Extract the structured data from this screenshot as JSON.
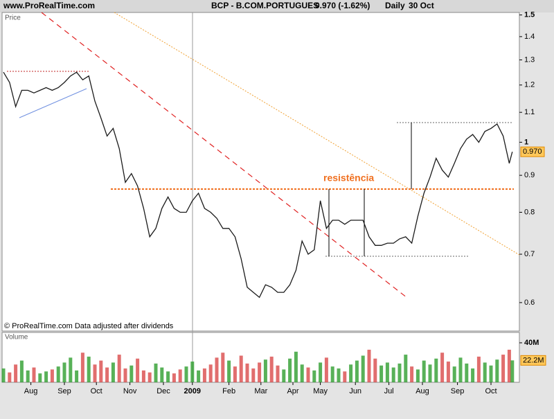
{
  "header_site": "www.ProRealTime.com",
  "chart_data": [
    {
      "type": "line",
      "title": "BCP - B.COM.PORTUGUES",
      "last_change": "0.970 (-1.62%)",
      "period": "Daily",
      "date": "30 Oct",
      "footer": "© ProRealTime.com  Data adjusted after dividends",
      "annotation": "resistência",
      "log_scale": true,
      "x": [
        0,
        4,
        8,
        12,
        16,
        20,
        24,
        28,
        32,
        36,
        40,
        44,
        48,
        52,
        56,
        60,
        64,
        68,
        72,
        76,
        80,
        84,
        88,
        92,
        96,
        100,
        104,
        108,
        112,
        116,
        120,
        124,
        128,
        132,
        136,
        140,
        144,
        148,
        152,
        156,
        160,
        164,
        168,
        172,
        176,
        180,
        184,
        188,
        192,
        196,
        200,
        204,
        208,
        212,
        216,
        220,
        224,
        228,
        232,
        236,
        240,
        244,
        248,
        252,
        256,
        260,
        264,
        268,
        272,
        276,
        280,
        284,
        288,
        292,
        296,
        300,
        304,
        308,
        312,
        316,
        320,
        324,
        328,
        332,
        334
      ],
      "series": [
        {
          "name": "Price",
          "color": "#1a1a1a",
          "values": [
            1.25,
            1.21,
            1.12,
            1.18,
            1.18,
            1.17,
            1.18,
            1.19,
            1.18,
            1.19,
            1.21,
            1.235,
            1.25,
            1.22,
            1.235,
            1.14,
            1.08,
            1.02,
            1.045,
            0.98,
            0.88,
            0.905,
            0.87,
            0.81,
            0.74,
            0.76,
            0.81,
            0.84,
            0.81,
            0.8,
            0.8,
            0.83,
            0.85,
            0.81,
            0.8,
            0.785,
            0.76,
            0.76,
            0.74,
            0.69,
            0.63,
            0.62,
            0.61,
            0.635,
            0.63,
            0.62,
            0.62,
            0.635,
            0.665,
            0.73,
            0.7,
            0.71,
            0.83,
            0.76,
            0.78,
            0.78,
            0.77,
            0.78,
            0.78,
            0.78,
            0.74,
            0.72,
            0.72,
            0.725,
            0.725,
            0.735,
            0.74,
            0.725,
            0.79,
            0.85,
            0.895,
            0.95,
            0.915,
            0.895,
            0.935,
            0.98,
            1.01,
            1.025,
            1.0,
            1.035,
            1.045,
            1.06,
            1.02,
            0.935,
            0.97
          ]
        }
      ],
      "last_price": {
        "value": 0.97,
        "label": "0.970"
      },
      "xlim": [
        0,
        335
      ],
      "xticks": [
        {
          "value": 18,
          "label": "Aug"
        },
        {
          "value": 40,
          "label": "Sep"
        },
        {
          "value": 61,
          "label": "Oct"
        },
        {
          "value": 83,
          "label": "Nov"
        },
        {
          "value": 105,
          "label": "Dec"
        },
        {
          "value": 124,
          "label": "2009"
        },
        {
          "value": 148,
          "label": "Feb"
        },
        {
          "value": 169,
          "label": "Mar"
        },
        {
          "value": 190,
          "label": "Apr"
        },
        {
          "value": 208,
          "label": "May"
        },
        {
          "value": 231,
          "label": "Jun"
        },
        {
          "value": 253,
          "label": "Jul"
        },
        {
          "value": 275,
          "label": "Aug"
        },
        {
          "value": 298,
          "label": "Sep"
        },
        {
          "value": 320,
          "label": "Oct"
        }
      ],
      "ylim": [
        0.548,
        1.512
      ],
      "yticks": [
        0.6,
        0.7,
        0.8,
        0.9,
        1,
        1.1,
        1.2,
        1.3,
        1.4,
        1.5
      ]
    },
    {
      "type": "bar",
      "y_label": "Volume",
      "up_color": "#2e9e2e",
      "down_color": "#d94a4a",
      "x": [
        0,
        4,
        8,
        12,
        16,
        20,
        24,
        28,
        32,
        36,
        40,
        44,
        48,
        52,
        56,
        60,
        64,
        68,
        72,
        76,
        80,
        84,
        88,
        92,
        96,
        100,
        104,
        108,
        112,
        116,
        120,
        124,
        128,
        132,
        136,
        140,
        144,
        148,
        152,
        156,
        160,
        164,
        168,
        172,
        176,
        180,
        184,
        188,
        192,
        196,
        200,
        204,
        208,
        212,
        216,
        220,
        224,
        228,
        232,
        236,
        240,
        244,
        248,
        252,
        256,
        260,
        264,
        268,
        272,
        276,
        280,
        284,
        288,
        292,
        296,
        300,
        304,
        308,
        312,
        316,
        320,
        324,
        328,
        332,
        334
      ],
      "values": [
        14,
        10,
        18,
        22,
        12,
        15,
        9,
        11,
        13,
        16,
        20,
        25,
        12,
        30,
        26,
        18,
        22,
        15,
        20,
        28,
        14,
        17,
        24,
        12,
        10,
        19,
        15,
        11,
        9,
        13,
        16,
        21,
        12,
        14,
        18,
        25,
        30,
        22,
        16,
        27,
        19,
        14,
        20,
        23,
        26,
        17,
        13,
        24,
        31,
        18,
        15,
        12,
        20,
        25,
        16,
        14,
        11,
        18,
        22,
        27,
        33,
        24,
        17,
        20,
        15,
        19,
        28,
        16,
        13,
        22,
        18,
        24,
        30,
        21,
        16,
        25,
        19,
        14,
        26,
        20,
        17,
        23,
        28,
        33,
        22.2
      ],
      "last_volume": {
        "value": 22.2,
        "label": "22.2M"
      },
      "xlim": [
        0,
        335
      ],
      "ylim": [
        0,
        50.5
      ],
      "yticks": [
        {
          "value": 40,
          "label": "40M"
        }
      ]
    }
  ]
}
